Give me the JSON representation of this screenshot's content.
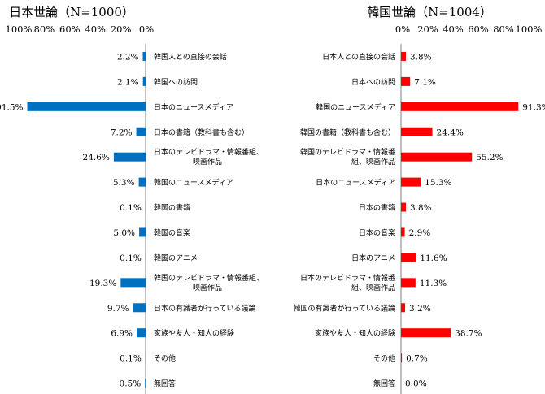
{
  "chart_data": [
    {
      "type": "bar",
      "orientation": "horizontal",
      "title": "日本世論（N=1000）",
      "xlim": [
        0,
        100
      ],
      "axis_direction": "reversed",
      "tick_labels": [
        "100%",
        "80%",
        "60%",
        "40%",
        "20%",
        "0%"
      ],
      "color": "#0070C0",
      "categories": [
        "韓国人との直接の会話",
        "韓国への訪問",
        "日本のニュースメディア",
        "日本の書籍（教科書も含む）",
        "日本のテレビドラマ・情報番組、映画作品",
        "韓国のニュースメディア",
        "韓国の書籍",
        "韓国の音楽",
        "韓国のアニメ",
        "韓国のテレビドラマ・情報番組、映画作品",
        "日本の有識者が行っている議論",
        "家族や友人・知人の経験",
        "その他",
        "無回答"
      ],
      "category_lines": [
        [
          "韓国人との直接の会話"
        ],
        [
          "韓国への訪問"
        ],
        [
          "日本のニュースメディア"
        ],
        [
          "日本の書籍（教科書も含む）"
        ],
        [
          "日本のテレビドラマ・情報番組、",
          "映画作品"
        ],
        [
          "韓国のニュースメディア"
        ],
        [
          "韓国の書籍"
        ],
        [
          "韓国の音楽"
        ],
        [
          "韓国のアニメ"
        ],
        [
          "韓国のテレビドラマ・情報番組、",
          "映画作品"
        ],
        [
          "日本の有識者が行っている議論"
        ],
        [
          "家族や友人・知人の経験"
        ],
        [
          "その他"
        ],
        [
          "無回答"
        ]
      ],
      "values": [
        2.2,
        2.1,
        91.5,
        7.2,
        24.6,
        5.3,
        0.1,
        5.0,
        0.1,
        19.3,
        9.7,
        6.9,
        0.1,
        0.5
      ],
      "value_labels": [
        "2.2%",
        "2.1%",
        "91.5%",
        "7.2%",
        "24.6%",
        "5.3%",
        "0.1%",
        "5.0%",
        "0.1%",
        "19.3%",
        "9.7%",
        "6.9%",
        "0.1%",
        "0.5%"
      ]
    },
    {
      "type": "bar",
      "orientation": "horizontal",
      "title": "韓国世論（N=1004）",
      "xlim": [
        0,
        100
      ],
      "axis_direction": "normal",
      "tick_labels": [
        "0%",
        "20%",
        "40%",
        "60%",
        "80%",
        "100%"
      ],
      "color": "#FF0000",
      "categories": [
        "日本人との直接の会話",
        "日本への訪問",
        "韓国のニュースメディア",
        "韓国の書籍（教科書も含む）",
        "韓国のテレビドラマ・情報番組、映画作品",
        "日本のニュースメディア",
        "日本の書籍",
        "日本の音楽",
        "日本のアニメ",
        "日本のテレビドラマ・情報番組、映画作品",
        "韓国の有識者が行っている議論",
        "家族や友人・知人の経験",
        "その他",
        "無回答"
      ],
      "category_lines": [
        [
          "日本人との直接の会話"
        ],
        [
          "日本への訪問"
        ],
        [
          "韓国のニュースメディア"
        ],
        [
          "韓国の書籍（教科書も含む）"
        ],
        [
          "韓国のテレビドラマ・情報番",
          "組、映画作品"
        ],
        [
          "日本のニュースメディア"
        ],
        [
          "日本の書籍"
        ],
        [
          "日本の音楽"
        ],
        [
          "日本のアニメ"
        ],
        [
          "日本のテレビドラマ・情報番",
          "組、映画作品"
        ],
        [
          "韓国の有識者が行っている議論"
        ],
        [
          "家族や友人・知人の経験"
        ],
        [
          "その他"
        ],
        [
          "無回答"
        ]
      ],
      "values": [
        3.8,
        7.1,
        91.3,
        24.4,
        55.2,
        15.3,
        3.8,
        2.9,
        11.6,
        11.3,
        3.2,
        38.7,
        0.7,
        0.0
      ],
      "value_labels": [
        "3.8%",
        "7.1%",
        "91.3%",
        "24.4%",
        "55.2%",
        "15.3%",
        "3.8%",
        "2.9%",
        "11.6%",
        "11.3%",
        "3.2%",
        "38.7%",
        "0.7%",
        "0.0%"
      ]
    }
  ]
}
